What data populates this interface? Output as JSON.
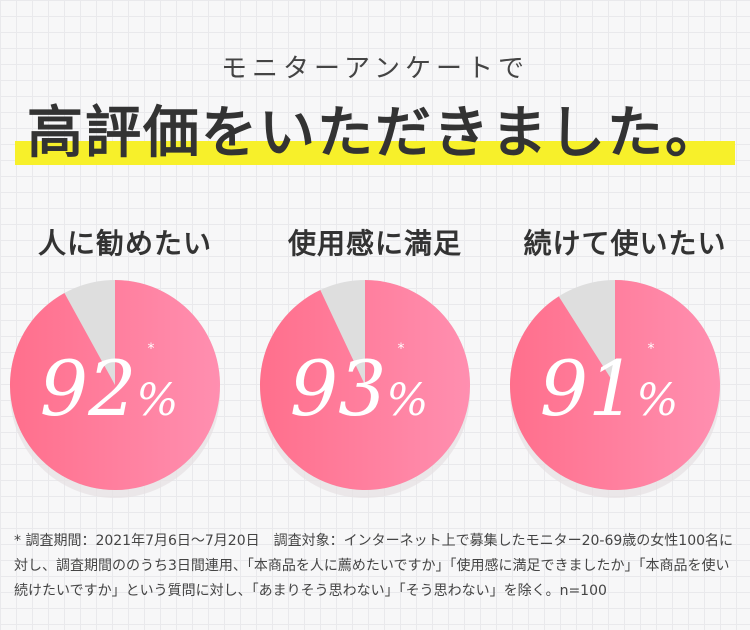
{
  "header": {
    "subtitle": "モニターアンケートで",
    "headline": "高評価をいただきました。"
  },
  "colors": {
    "pie_fill": "#ff8fb0",
    "pie_fill_dark": "#ff6f8c",
    "pie_remainder": "#dedede",
    "marker": "#f7f02a"
  },
  "chart_data": [
    {
      "type": "pie",
      "title": "人に勧めたい",
      "value": 92,
      "unit": "%",
      "mark": "*"
    },
    {
      "type": "pie",
      "title": "使用感に満足",
      "value": 93,
      "unit": "%",
      "mark": "*"
    },
    {
      "type": "pie",
      "title": "続けて使いたい",
      "value": 91,
      "unit": "%",
      "mark": "*"
    }
  ],
  "footnote": "* 調査期間：2021年7月6日〜7月20日　調査対象：インターネット上で募集したモニター20-69歳の女性100名に対し、調査期間ののうち3日間連用、「本商品を人に薦めたいですか」「使用感に満足できましたか」「本商品を使い続けたいですか」という質問に対し、「あまりそう思わない」「そう思わない」を除く。n=100"
}
